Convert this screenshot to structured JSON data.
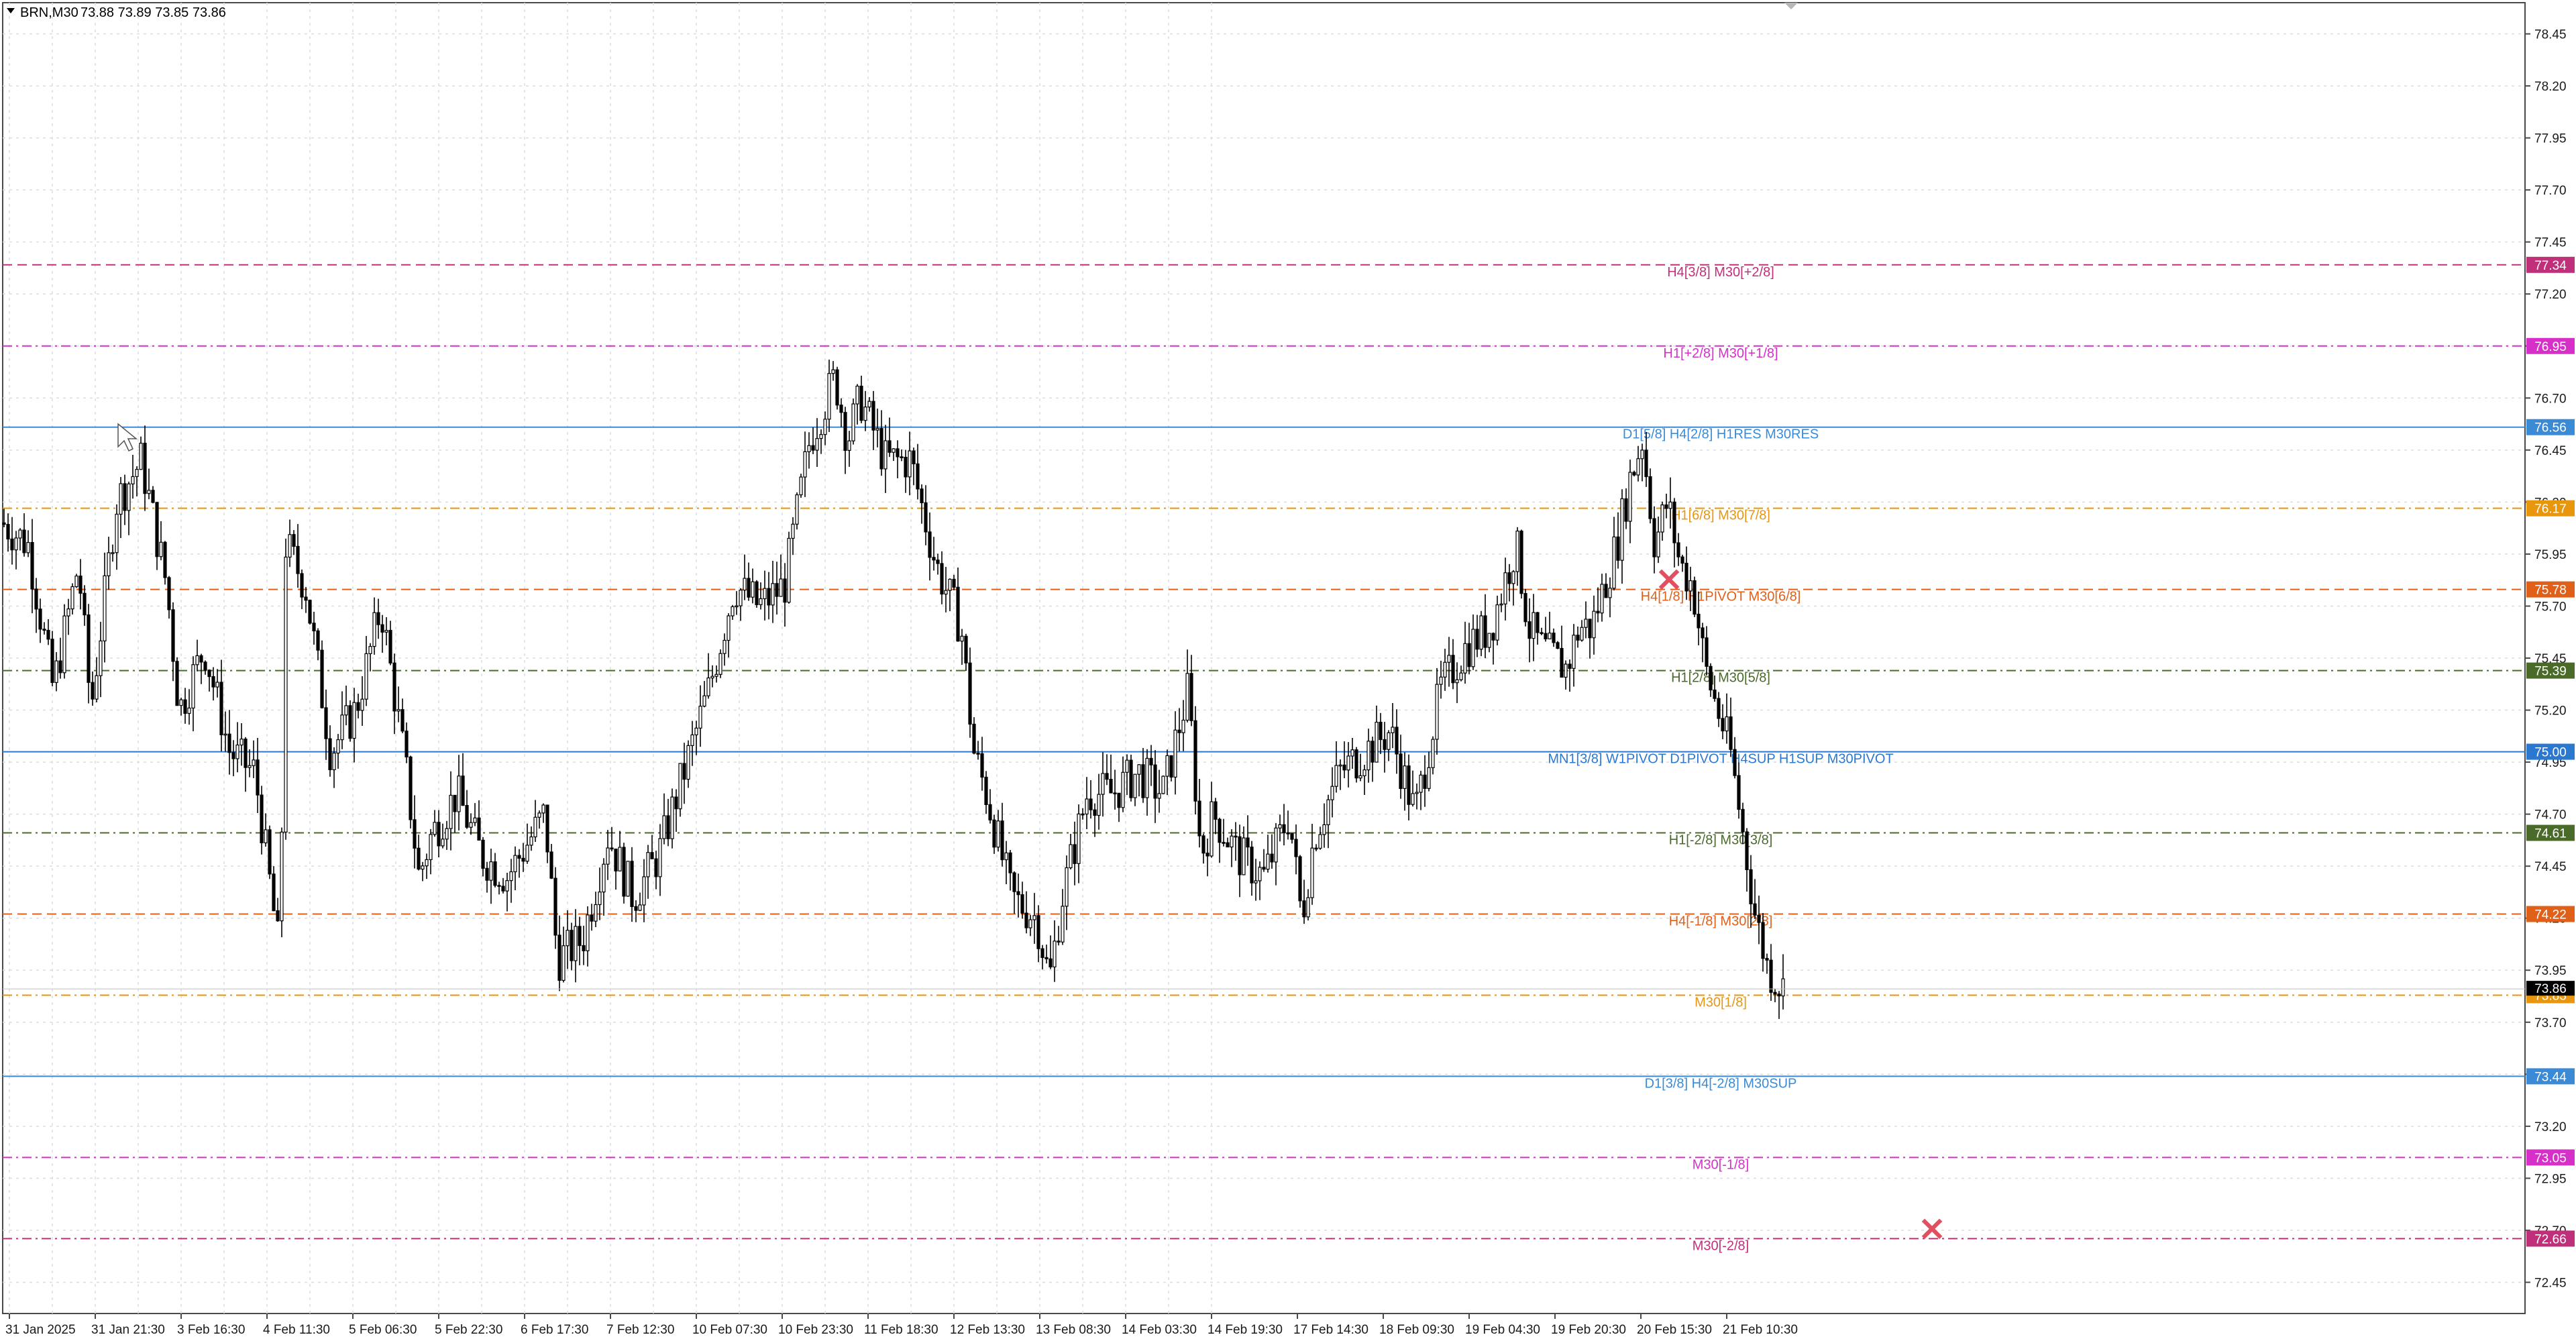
{
  "header": {
    "symbol": "BRN,M30",
    "ohlc": "73.88 73.89 73.85 73.86"
  },
  "chart_data": {
    "type": "candlestick",
    "symbol": "BRN",
    "timeframe": "M30",
    "ylim": [
      72.3,
      78.6
    ],
    "y_ticks": [
      "78.45",
      "78.20",
      "77.95",
      "77.70",
      "77.45",
      "77.20",
      "76.95",
      "76.70",
      "76.45",
      "76.20",
      "75.95",
      "75.70",
      "75.45",
      "75.20",
      "74.95",
      "74.70",
      "74.45",
      "74.20",
      "73.95",
      "73.70",
      "73.45",
      "73.20",
      "72.95",
      "72.70",
      "72.45"
    ],
    "x_ticks": [
      "31 Jan 2025",
      "31 Jan 21:30",
      "3 Feb 16:30",
      "4 Feb 11:30",
      "5 Feb 06:30",
      "5 Feb 22:30",
      "6 Feb 17:30",
      "7 Feb 12:30",
      "10 Feb 07:30",
      "10 Feb 23:30",
      "11 Feb 18:30",
      "12 Feb 13:30",
      "13 Feb 08:30",
      "14 Feb 03:30",
      "14 Feb 19:30",
      "17 Feb 14:30",
      "18 Feb 09:30",
      "19 Feb 04:30",
      "19 Feb 20:30",
      "20 Feb 15:30",
      "21 Feb 10:30"
    ],
    "grid": true,
    "current_price": "73.86",
    "price_path": [
      [
        0,
        76.1
      ],
      [
        0.01,
        76.0
      ],
      [
        0.02,
        75.3
      ],
      [
        0.03,
        75.9
      ],
      [
        0.035,
        75.2
      ],
      [
        0.045,
        76.2
      ],
      [
        0.055,
        76.4
      ],
      [
        0.065,
        75.8
      ],
      [
        0.07,
        75.2
      ],
      [
        0.08,
        75.5
      ],
      [
        0.09,
        75.0
      ],
      [
        0.1,
        74.9
      ],
      [
        0.11,
        74.0
      ],
      [
        0.112,
        76.0
      ],
      [
        0.12,
        75.8
      ],
      [
        0.13,
        75.0
      ],
      [
        0.14,
        75.2
      ],
      [
        0.15,
        75.7
      ],
      [
        0.16,
        74.9
      ],
      [
        0.165,
        74.4
      ],
      [
        0.17,
        74.6
      ],
      [
        0.18,
        74.8
      ],
      [
        0.19,
        74.5
      ],
      [
        0.2,
        74.4
      ],
      [
        0.21,
        74.6
      ],
      [
        0.215,
        74.7
      ],
      [
        0.22,
        74.0
      ],
      [
        0.23,
        74.1
      ],
      [
        0.24,
        74.6
      ],
      [
        0.25,
        74.3
      ],
      [
        0.26,
        74.5
      ],
      [
        0.27,
        74.9
      ],
      [
        0.28,
        75.3
      ],
      [
        0.29,
        75.8
      ],
      [
        0.3,
        75.7
      ],
      [
        0.31,
        75.8
      ],
      [
        0.32,
        76.5
      ],
      [
        0.33,
        76.8
      ],
      [
        0.335,
        76.5
      ],
      [
        0.34,
        76.7
      ],
      [
        0.35,
        76.4
      ],
      [
        0.36,
        76.4
      ],
      [
        0.37,
        75.9
      ],
      [
        0.38,
        75.6
      ],
      [
        0.385,
        75.0
      ],
      [
        0.39,
        74.8
      ],
      [
        0.4,
        74.3
      ],
      [
        0.41,
        74.2
      ],
      [
        0.415,
        73.9
      ],
      [
        0.42,
        74.3
      ],
      [
        0.43,
        74.8
      ],
      [
        0.44,
        74.8
      ],
      [
        0.45,
        74.9
      ],
      [
        0.46,
        74.8
      ],
      [
        0.47,
        75.3
      ],
      [
        0.475,
        74.5
      ],
      [
        0.48,
        74.7
      ],
      [
        0.49,
        74.5
      ],
      [
        0.5,
        74.4
      ],
      [
        0.51,
        74.7
      ],
      [
        0.515,
        74.2
      ],
      [
        0.52,
        74.6
      ],
      [
        0.53,
        74.9
      ],
      [
        0.54,
        75.0
      ],
      [
        0.55,
        75.1
      ],
      [
        0.56,
        74.7
      ],
      [
        0.57,
        75.3
      ],
      [
        0.58,
        75.5
      ],
      [
        0.59,
        75.6
      ],
      [
        0.6,
        76.0
      ],
      [
        0.605,
        75.6
      ],
      [
        0.61,
        75.5
      ],
      [
        0.62,
        75.4
      ],
      [
        0.625,
        75.6
      ],
      [
        0.63,
        75.6
      ],
      [
        0.635,
        75.8
      ],
      [
        0.64,
        76.0
      ],
      [
        0.645,
        76.3
      ],
      [
        0.65,
        76.5
      ],
      [
        0.655,
        76.0
      ],
      [
        0.66,
        76.2
      ],
      [
        0.665,
        75.9
      ],
      [
        0.67,
        75.8
      ],
      [
        0.675,
        75.4
      ],
      [
        0.68,
        75.2
      ],
      [
        0.685,
        75.0
      ],
      [
        0.69,
        74.6
      ],
      [
        0.695,
        74.2
      ],
      [
        0.7,
        73.95
      ],
      [
        0.706,
        73.86
      ]
    ]
  },
  "levels": [
    {
      "label": "H4[3/8] M30[+2/8]",
      "price": 77.34,
      "price_text": "77.34",
      "color": "#c0307a",
      "line": "dash"
    },
    {
      "label": "H1[+2/8] M30[+1/8]",
      "price": 76.95,
      "price_text": "76.95",
      "color": "#d630c8",
      "line": "dashdot"
    },
    {
      "label": "D1[5/8] H4[2/8] H1RES M30RES",
      "price": 76.56,
      "price_text": "76.56",
      "color": "#3a8ad6",
      "line": "solid"
    },
    {
      "label": "H1[6/8] M30[7/8]",
      "price": 76.17,
      "price_text": "76.17",
      "color": "#e8960e",
      "line": "dashdot"
    },
    {
      "label": "H4[1/8] H1PIVOT M30[6/8]",
      "price": 75.78,
      "price_text": "75.78",
      "color": "#e0601a",
      "line": "dash"
    },
    {
      "label": "H1[2/8] M30[5/8]",
      "price": 75.39,
      "price_text": "75.39",
      "color": "#4a6a2a",
      "line": "dashdot"
    },
    {
      "label": "MN1[3/8] W1PIVOT D1PIVOT H4SUP H1SUP M30PIVOT",
      "price": 75.0,
      "price_text": "75.00",
      "color": "#2a78d0",
      "line": "solid"
    },
    {
      "label": "H1[-2/8] M30[3/8]",
      "price": 74.61,
      "price_text": "74.61",
      "color": "#4a6a2a",
      "line": "dashdot"
    },
    {
      "label": "H4[-1/8] M30[2/8]",
      "price": 74.22,
      "price_text": "74.22",
      "color": "#e0601a",
      "line": "dash"
    },
    {
      "label": "M30[1/8]",
      "price": 73.83,
      "price_text": "73.83",
      "color": "#e8960e",
      "line": "dashdot"
    },
    {
      "label": "D1[3/8] H4[-2/8] M30SUP",
      "price": 73.44,
      "price_text": "73.44",
      "color": "#3a8ad6",
      "line": "solid"
    },
    {
      "label": "M30[-1/8]",
      "price": 73.05,
      "price_text": "73.05",
      "color": "#d630c8",
      "line": "dashdot"
    },
    {
      "label": "M30[-2/8]",
      "price": 72.66,
      "price_text": "72.66",
      "color": "#c0307a",
      "line": "dashdot"
    }
  ],
  "markers": [
    {
      "name": "cross-marker-upper",
      "symbol": "×",
      "color": "#e05060",
      "price": 75.82
    },
    {
      "name": "cross-marker-lower",
      "symbol": "×",
      "color": "#e05060",
      "price": 72.7
    }
  ]
}
